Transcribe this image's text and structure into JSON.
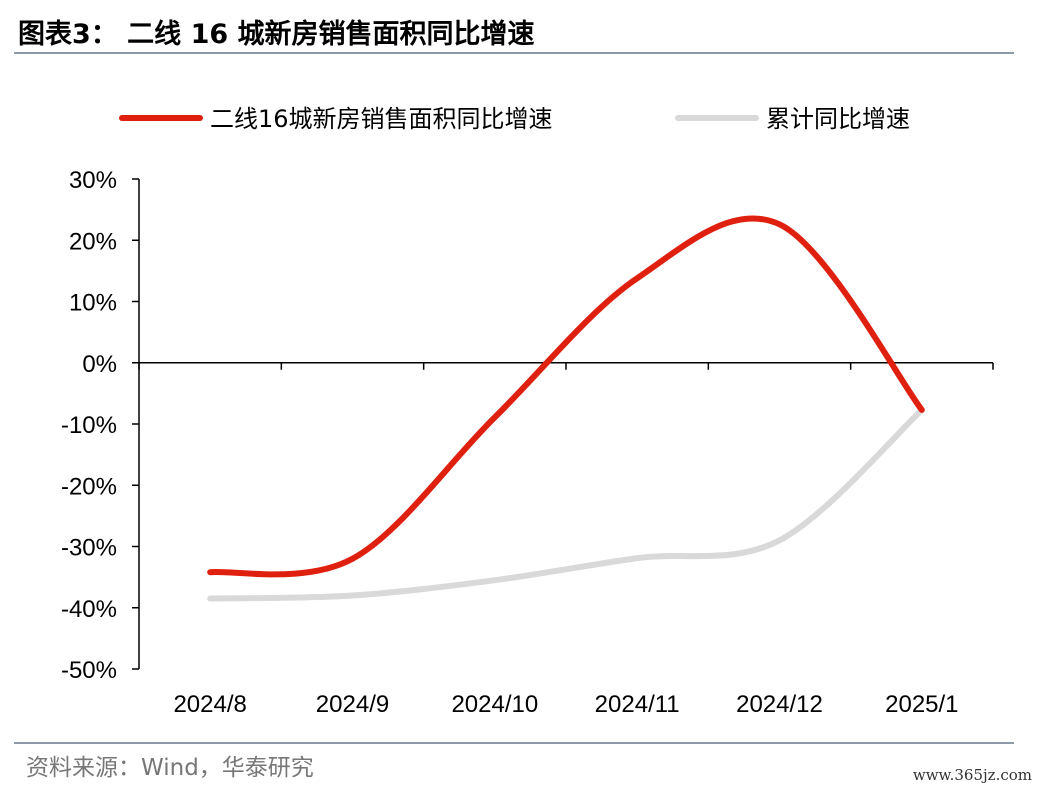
{
  "figure": {
    "title": "图表3： 二线 16 城新房销售面积同比增速",
    "source": "资料来源：Wind，华泰研究",
    "watermark": "www.365jz.com"
  },
  "chart_data": {
    "type": "line",
    "categories": [
      "2024/8",
      "2024/9",
      "2024/10",
      "2024/11",
      "2024/12",
      "2025/1"
    ],
    "ylim": [
      -50,
      30
    ],
    "yticks": [
      30,
      20,
      10,
      0,
      -10,
      -20,
      -30,
      -40,
      -50
    ],
    "ytick_labels": [
      "30%",
      "20%",
      "10%",
      "0%",
      "-10%",
      "-20%",
      "-30%",
      "-40%",
      "-50%"
    ],
    "grid": false,
    "legend_position": "top",
    "series": [
      {
        "name": "二线16城新房销售面积同比增速",
        "color": "#e0200f",
        "values": [
          -34.2,
          -32.0,
          -8.9,
          13.8,
          22.6,
          -7.7
        ]
      },
      {
        "name": "累计同比增速",
        "color": "#d9d9d9",
        "values": [
          -38.5,
          -38.0,
          -35.5,
          -31.9,
          -29.0,
          -7.7
        ]
      }
    ]
  }
}
